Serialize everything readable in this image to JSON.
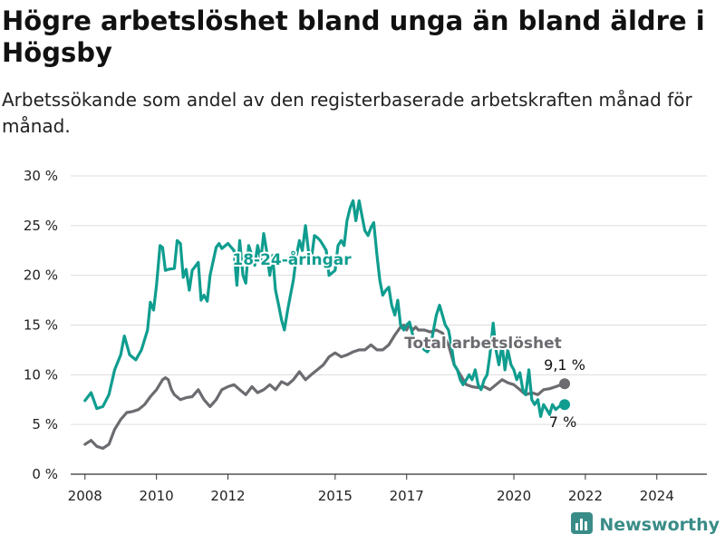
{
  "title": "Högre arbetslöshet bland unga än bland äldre i Högsby",
  "subtitle": "Arbetssökande som andel av den registerbaserade arbetskraften månad för månad.",
  "brand": {
    "name": "Newsworthy",
    "icon": "bar-chart-logo-icon",
    "color": "#3a8c88"
  },
  "chart_data": {
    "type": "line",
    "ylim": [
      0,
      30
    ],
    "xlim": [
      2007.6,
      2025.4
    ],
    "y_ticks": [
      0,
      5,
      10,
      15,
      20,
      25,
      30
    ],
    "y_tick_labels": [
      "0 %",
      "5 %",
      "10 %",
      "15 %",
      "20 %",
      "25 %",
      "30 %"
    ],
    "x_ticks": [
      2008,
      2010,
      2012,
      2015,
      2017,
      2020,
      2022,
      2024
    ],
    "x_tick_labels": [
      "2008",
      "2010",
      "2012",
      "2015",
      "2017",
      "2020",
      "2022",
      "2024"
    ],
    "grid": "horizontal",
    "series": [
      {
        "name": "18-24-åringar",
        "color": "#0f9d8f",
        "end_label": "7 %",
        "points": [
          [
            2008.0,
            7.4
          ],
          [
            2008.17,
            8.2
          ],
          [
            2008.33,
            6.6
          ],
          [
            2008.5,
            6.8
          ],
          [
            2008.67,
            8.0
          ],
          [
            2008.83,
            10.5
          ],
          [
            2009.0,
            12.0
          ],
          [
            2009.1,
            13.9
          ],
          [
            2009.25,
            12.0
          ],
          [
            2009.42,
            11.5
          ],
          [
            2009.58,
            12.5
          ],
          [
            2009.75,
            14.5
          ],
          [
            2009.83,
            17.3
          ],
          [
            2009.92,
            16.5
          ],
          [
            2010.0,
            19.0
          ],
          [
            2010.1,
            23.0
          ],
          [
            2010.17,
            22.8
          ],
          [
            2010.25,
            20.5
          ],
          [
            2010.33,
            20.6
          ],
          [
            2010.5,
            20.7
          ],
          [
            2010.58,
            23.5
          ],
          [
            2010.67,
            23.2
          ],
          [
            2010.75,
            19.8
          ],
          [
            2010.83,
            20.6
          ],
          [
            2010.92,
            18.5
          ],
          [
            2011.0,
            20.5
          ],
          [
            2011.17,
            21.3
          ],
          [
            2011.25,
            17.5
          ],
          [
            2011.33,
            18.0
          ],
          [
            2011.42,
            17.4
          ],
          [
            2011.5,
            20.0
          ],
          [
            2011.67,
            22.8
          ],
          [
            2011.75,
            23.2
          ],
          [
            2011.83,
            22.7
          ],
          [
            2012.0,
            23.2
          ],
          [
            2012.17,
            22.5
          ],
          [
            2012.25,
            19.0
          ],
          [
            2012.33,
            23.5
          ],
          [
            2012.42,
            20.0
          ],
          [
            2012.5,
            19.2
          ],
          [
            2012.58,
            23.0
          ],
          [
            2012.67,
            22.0
          ],
          [
            2012.75,
            21.0
          ],
          [
            2012.83,
            23.0
          ],
          [
            2012.92,
            21.5
          ],
          [
            2013.0,
            24.2
          ],
          [
            2013.08,
            22.5
          ],
          [
            2013.17,
            20.0
          ],
          [
            2013.25,
            22.0
          ],
          [
            2013.33,
            18.5
          ],
          [
            2013.42,
            17.0
          ],
          [
            2013.5,
            15.5
          ],
          [
            2013.58,
            14.5
          ],
          [
            2013.67,
            16.5
          ],
          [
            2013.75,
            18.0
          ],
          [
            2013.83,
            19.5
          ],
          [
            2013.92,
            22.0
          ],
          [
            2014.0,
            23.5
          ],
          [
            2014.08,
            22.5
          ],
          [
            2014.17,
            25.0
          ],
          [
            2014.25,
            22.5
          ],
          [
            2014.33,
            21.5
          ],
          [
            2014.42,
            24.0
          ],
          [
            2014.5,
            23.8
          ],
          [
            2014.58,
            23.5
          ],
          [
            2014.67,
            23.0
          ],
          [
            2014.75,
            22.5
          ],
          [
            2014.83,
            20.0
          ],
          [
            2015.0,
            20.5
          ],
          [
            2015.08,
            23.0
          ],
          [
            2015.17,
            23.5
          ],
          [
            2015.25,
            23.0
          ],
          [
            2015.33,
            25.5
          ],
          [
            2015.42,
            26.8
          ],
          [
            2015.5,
            27.5
          ],
          [
            2015.58,
            25.5
          ],
          [
            2015.67,
            27.5
          ],
          [
            2015.75,
            26.0
          ],
          [
            2015.83,
            24.5
          ],
          [
            2015.92,
            24.0
          ],
          [
            2016.0,
            24.8
          ],
          [
            2016.08,
            25.3
          ],
          [
            2016.17,
            22.0
          ],
          [
            2016.25,
            19.5
          ],
          [
            2016.33,
            18.0
          ],
          [
            2016.42,
            18.5
          ],
          [
            2016.5,
            18.8
          ],
          [
            2016.58,
            17.0
          ],
          [
            2016.67,
            16.0
          ],
          [
            2016.75,
            17.5
          ],
          [
            2016.83,
            15.0
          ],
          [
            2016.92,
            14.5
          ],
          [
            2017.0,
            15.0
          ],
          [
            2017.08,
            15.3
          ],
          [
            2017.17,
            14.0
          ],
          [
            2017.25,
            13.5
          ],
          [
            2017.33,
            13.0
          ],
          [
            2017.42,
            12.8
          ],
          [
            2017.5,
            12.5
          ],
          [
            2017.58,
            12.3
          ],
          [
            2017.67,
            12.8
          ],
          [
            2017.75,
            14.5
          ],
          [
            2017.83,
            16.0
          ],
          [
            2017.92,
            17.0
          ],
          [
            2018.0,
            16.0
          ],
          [
            2018.08,
            15.0
          ],
          [
            2018.17,
            14.5
          ],
          [
            2018.25,
            13.0
          ],
          [
            2018.33,
            11.0
          ],
          [
            2018.42,
            10.5
          ],
          [
            2018.5,
            9.5
          ],
          [
            2018.58,
            9.0
          ],
          [
            2018.67,
            9.5
          ],
          [
            2018.75,
            10.0
          ],
          [
            2018.83,
            9.5
          ],
          [
            2018.92,
            10.5
          ],
          [
            2019.0,
            9.0
          ],
          [
            2019.08,
            8.5
          ],
          [
            2019.17,
            9.5
          ],
          [
            2019.25,
            10.0
          ],
          [
            2019.33,
            12.0
          ],
          [
            2019.42,
            15.2
          ],
          [
            2019.5,
            12.5
          ],
          [
            2019.58,
            11.0
          ],
          [
            2019.67,
            13.0
          ],
          [
            2019.75,
            10.5
          ],
          [
            2019.83,
            12.5
          ],
          [
            2019.92,
            11.0
          ],
          [
            2020.0,
            10.5
          ],
          [
            2020.08,
            9.5
          ],
          [
            2020.17,
            10.2
          ],
          [
            2020.25,
            8.5
          ],
          [
            2020.33,
            8.0
          ],
          [
            2020.42,
            10.5
          ],
          [
            2020.5,
            7.5
          ],
          [
            2020.58,
            7.0
          ],
          [
            2020.67,
            7.5
          ],
          [
            2020.75,
            5.8
          ],
          [
            2020.83,
            7.0
          ],
          [
            2020.92,
            6.5
          ],
          [
            2021.0,
            6.0
          ],
          [
            2021.08,
            7.0
          ],
          [
            2021.17,
            6.5
          ],
          [
            2021.33,
            7.0
          ],
          [
            2021.42,
            7.0
          ]
        ]
      },
      {
        "name": "Total arbetslöshet",
        "color": "#6b6b70",
        "end_label": "9,1 %",
        "points": [
          [
            2008.0,
            3.0
          ],
          [
            2008.17,
            3.4
          ],
          [
            2008.33,
            2.8
          ],
          [
            2008.5,
            2.6
          ],
          [
            2008.67,
            3.0
          ],
          [
            2008.83,
            4.5
          ],
          [
            2009.0,
            5.5
          ],
          [
            2009.17,
            6.2
          ],
          [
            2009.33,
            6.3
          ],
          [
            2009.5,
            6.5
          ],
          [
            2009.67,
            7.0
          ],
          [
            2009.83,
            7.8
          ],
          [
            2010.0,
            8.5
          ],
          [
            2010.17,
            9.5
          ],
          [
            2010.25,
            9.7
          ],
          [
            2010.33,
            9.5
          ],
          [
            2010.42,
            8.5
          ],
          [
            2010.5,
            8.0
          ],
          [
            2010.67,
            7.5
          ],
          [
            2010.83,
            7.7
          ],
          [
            2011.0,
            7.8
          ],
          [
            2011.17,
            8.5
          ],
          [
            2011.25,
            8.0
          ],
          [
            2011.33,
            7.5
          ],
          [
            2011.5,
            6.8
          ],
          [
            2011.67,
            7.5
          ],
          [
            2011.83,
            8.5
          ],
          [
            2012.0,
            8.8
          ],
          [
            2012.17,
            9.0
          ],
          [
            2012.33,
            8.5
          ],
          [
            2012.5,
            8.0
          ],
          [
            2012.67,
            8.8
          ],
          [
            2012.83,
            8.2
          ],
          [
            2013.0,
            8.5
          ],
          [
            2013.17,
            9.0
          ],
          [
            2013.33,
            8.5
          ],
          [
            2013.5,
            9.3
          ],
          [
            2013.67,
            9.0
          ],
          [
            2013.83,
            9.5
          ],
          [
            2014.0,
            10.3
          ],
          [
            2014.17,
            9.5
          ],
          [
            2014.33,
            10.0
          ],
          [
            2014.5,
            10.5
          ],
          [
            2014.67,
            11.0
          ],
          [
            2014.83,
            11.8
          ],
          [
            2015.0,
            12.2
          ],
          [
            2015.17,
            11.8
          ],
          [
            2015.33,
            12.0
          ],
          [
            2015.5,
            12.3
          ],
          [
            2015.67,
            12.5
          ],
          [
            2015.83,
            12.5
          ],
          [
            2016.0,
            13.0
          ],
          [
            2016.17,
            12.5
          ],
          [
            2016.33,
            12.5
          ],
          [
            2016.5,
            13.0
          ],
          [
            2016.67,
            14.0
          ],
          [
            2016.83,
            14.8
          ],
          [
            2016.92,
            15.0
          ],
          [
            2017.0,
            14.5
          ],
          [
            2017.08,
            15.0
          ],
          [
            2017.17,
            14.5
          ],
          [
            2017.25,
            14.8
          ],
          [
            2017.33,
            14.5
          ],
          [
            2017.5,
            14.5
          ],
          [
            2017.67,
            14.3
          ],
          [
            2017.83,
            14.5
          ],
          [
            2018.0,
            14.2
          ],
          [
            2018.17,
            13.0
          ],
          [
            2018.33,
            11.0
          ],
          [
            2018.5,
            10.0
          ],
          [
            2018.67,
            9.0
          ],
          [
            2018.83,
            8.8
          ],
          [
            2019.0,
            8.7
          ],
          [
            2019.17,
            8.8
          ],
          [
            2019.33,
            8.5
          ],
          [
            2019.5,
            9.0
          ],
          [
            2019.67,
            9.5
          ],
          [
            2019.83,
            9.2
          ],
          [
            2020.0,
            9.0
          ],
          [
            2020.17,
            8.5
          ],
          [
            2020.33,
            8.0
          ],
          [
            2020.5,
            8.2
          ],
          [
            2020.67,
            8.0
          ],
          [
            2020.83,
            8.5
          ],
          [
            2021.0,
            8.6
          ],
          [
            2021.17,
            8.8
          ],
          [
            2021.33,
            9.0
          ],
          [
            2021.42,
            9.1
          ]
        ]
      }
    ]
  }
}
